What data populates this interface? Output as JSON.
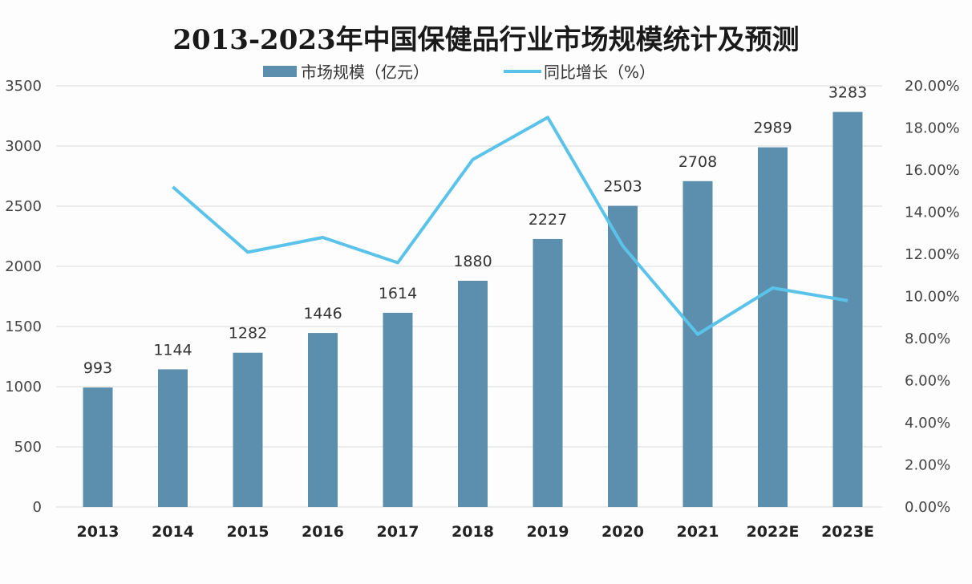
{
  "chart_data": {
    "type": "bar+line",
    "title": "2013-2023年中国保健品行业市场规模统计及预测",
    "categories": [
      "2013",
      "2014",
      "2015",
      "2016",
      "2017",
      "2018",
      "2019",
      "2020",
      "2021",
      "2022E",
      "2023E"
    ],
    "series": [
      {
        "name": "市场规模（亿元）",
        "type": "bar",
        "axis": "left",
        "color": "#5b8fad",
        "values": [
          993,
          1144,
          1282,
          1446,
          1614,
          1880,
          2227,
          2503,
          2708,
          2989,
          3283
        ]
      },
      {
        "name": "同比增长（%）",
        "type": "line",
        "axis": "right",
        "color": "#5bc3ea",
        "values": [
          null,
          15.2,
          12.1,
          12.8,
          11.6,
          16.5,
          18.5,
          12.4,
          8.2,
          10.4,
          9.8
        ]
      }
    ],
    "left_axis": {
      "ylim": [
        0,
        3500
      ],
      "ticks": [
        "0",
        "500",
        "1000",
        "1500",
        "2000",
        "2500",
        "3000",
        "3500"
      ]
    },
    "right_axis": {
      "ylim": [
        0,
        20
      ],
      "ticks": [
        "0.00%",
        "2.00%",
        "4.00%",
        "6.00%",
        "8.00%",
        "10.00%",
        "12.00%",
        "14.00%",
        "16.00%",
        "18.00%",
        "20.00%"
      ]
    },
    "grid": true,
    "legend": "top-center"
  }
}
